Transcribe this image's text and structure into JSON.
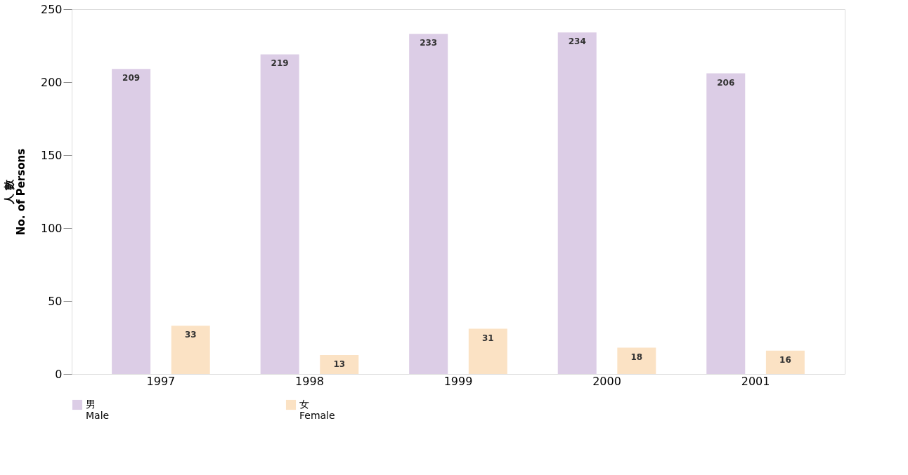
{
  "chart_data": {
    "type": "bar",
    "categories": [
      "1997",
      "1998",
      "1999",
      "2000",
      "2001"
    ],
    "series": [
      {
        "name": "男\nMale",
        "color": "#dccde6",
        "values": [
          209,
          219,
          233,
          234,
          206
        ]
      },
      {
        "name": "女\nFemale",
        "color": "#fbe2c4",
        "values": [
          33,
          13,
          31,
          18,
          16
        ]
      }
    ],
    "ylabel": "人 數\nNo. of Persons",
    "ylim": [
      0,
      250
    ],
    "yticks": [
      0,
      50,
      100,
      150,
      200,
      250
    ],
    "data_labels": true,
    "grid": false,
    "legend": "bottom"
  }
}
